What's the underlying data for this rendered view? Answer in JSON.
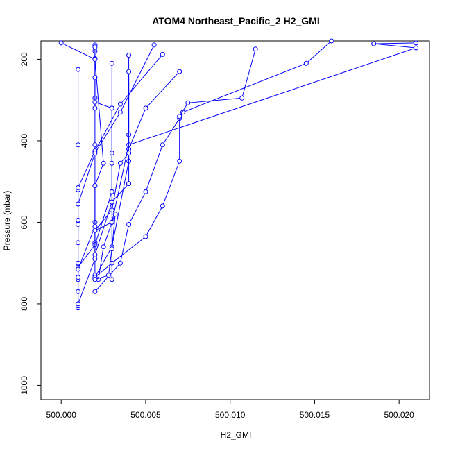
{
  "chart_data": {
    "type": "line",
    "title": "ATOM4 Northeast_Pacific_2 H2_GMI",
    "xlabel": "H2_GMI",
    "ylabel": "Pressure (mbar)",
    "xlim": [
      499.9988,
      500.0218
    ],
    "ylim": [
      1035,
      155
    ],
    "y_reversed": true,
    "x_ticks": [
      500.0,
      500.005,
      500.01,
      500.015,
      500.02
    ],
    "x_tick_labels": [
      "500.000",
      "500.005",
      "500.010",
      "500.015",
      "500.020"
    ],
    "y_ticks": [
      200,
      400,
      600,
      800,
      1000
    ],
    "y_tick_labels": [
      "200",
      "400",
      "600",
      "800",
      "1000"
    ],
    "grid": false,
    "legend": "none",
    "series_color": "#0000ff",
    "marker": "open-circle",
    "series": [
      {
        "x": [
          500.001,
          500.001,
          500.001,
          500.001,
          500.001,
          500.001,
          500.001,
          500.001,
          500.001
        ],
        "y": [
          225,
          410,
          520,
          595,
          650,
          700,
          735,
          770,
          810
        ]
      },
      {
        "x": [
          500.002,
          500.002,
          500.002,
          500.002,
          500.002,
          500.002,
          500.002,
          500.002,
          500.002,
          500.002
        ],
        "y": [
          165,
          180,
          198,
          295,
          320,
          410,
          510,
          600,
          650,
          730
        ]
      },
      {
        "x": [
          500.002,
          500.002,
          500.002,
          500.003,
          500.003,
          500.003,
          500.002,
          500.001,
          500.001
        ],
        "y": [
          170,
          245,
          305,
          320,
          430,
          525,
          655,
          710,
          805
        ]
      },
      {
        "x": [
          500.004,
          500.004,
          500.004,
          500.0035,
          500.003,
          500.002,
          500.002,
          500.001
        ],
        "y": [
          190,
          385,
          430,
          455,
          570,
          620,
          690,
          800
        ]
      },
      {
        "x": [
          500.0,
          500.002,
          500.0025,
          500.002,
          500.002,
          500.001,
          500.001
        ],
        "y": [
          160,
          200,
          455,
          510,
          610,
          715,
          740
        ]
      },
      {
        "x": [
          500.006,
          500.0035,
          500.002,
          500.001,
          500.001,
          500.001
        ],
        "y": [
          188,
          310,
          425,
          515,
          605,
          735
        ]
      },
      {
        "x": [
          500.0055,
          500.0035,
          500.002,
          500.001
        ],
        "y": [
          165,
          330,
          430,
          555
        ]
      },
      {
        "x": [
          500.007,
          500.005,
          500.004,
          500.004,
          500.003,
          500.002
        ],
        "y": [
          230,
          320,
          420,
          450,
          660,
          735
        ]
      },
      {
        "x": [
          500.016,
          500.0145,
          500.0072,
          500.007,
          500.006,
          500.005,
          500.004,
          500.0035,
          500.002
        ],
        "y": [
          155,
          210,
          330,
          345,
          410,
          525,
          605,
          700,
          770
        ]
      },
      {
        "x": [
          500.0115,
          500.0107,
          500.0075,
          500.007,
          500.007,
          500.006,
          500.005,
          500.003,
          500.002
        ],
        "y": [
          175,
          295,
          307,
          340,
          450,
          560,
          635,
          700,
          735
        ]
      },
      {
        "x": [
          500.021,
          500.0185,
          500.021,
          500.004,
          500.003,
          500.0025,
          500.0022,
          500.002
        ],
        "y": [
          160,
          162,
          172,
          410,
          600,
          660,
          740,
          740
        ]
      },
      {
        "x": [
          500.003,
          500.003,
          500.003,
          500.003,
          500.003,
          500.003,
          500.003
        ],
        "y": [
          210,
          320,
          455,
          525,
          550,
          600,
          740
        ]
      },
      {
        "x": [
          500.002,
          500.003,
          500.0032,
          500.003,
          500.0028,
          500.002
        ],
        "y": [
          620,
          600,
          580,
          665,
          730,
          740
        ]
      },
      {
        "x": [
          500.004,
          500.004,
          500.004,
          500.003,
          500.002
        ],
        "y": [
          230,
          430,
          505,
          550,
          680
        ]
      }
    ]
  }
}
